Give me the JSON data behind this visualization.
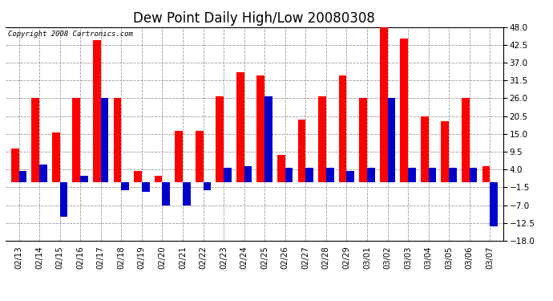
{
  "title": "Dew Point Daily High/Low 20080308",
  "copyright": "Copyright 2008 Cartronics.com",
  "dates": [
    "02/13",
    "02/14",
    "02/15",
    "02/16",
    "02/17",
    "02/18",
    "02/19",
    "02/20",
    "02/21",
    "02/22",
    "02/23",
    "02/24",
    "02/25",
    "02/26",
    "02/27",
    "02/28",
    "02/29",
    "03/01",
    "03/02",
    "03/03",
    "03/04",
    "03/05",
    "03/06",
    "03/07"
  ],
  "highs": [
    10.5,
    26.0,
    15.5,
    26.0,
    44.0,
    26.0,
    3.5,
    2.0,
    16.0,
    16.0,
    26.5,
    34.0,
    33.0,
    8.5,
    19.5,
    26.5,
    33.0,
    26.0,
    48.0,
    44.5,
    20.5,
    19.0,
    26.0,
    5.0
  ],
  "lows": [
    3.5,
    5.5,
    -10.5,
    2.0,
    26.0,
    -2.5,
    -3.0,
    -7.0,
    -7.0,
    -2.5,
    4.5,
    5.0,
    26.5,
    4.5,
    4.5,
    4.5,
    3.5,
    4.5,
    26.0,
    4.5,
    4.5,
    4.5,
    4.5,
    -13.5
  ],
  "high_color": "#ff0000",
  "low_color": "#0000cc",
  "bg_color": "#ffffff",
  "grid_color": "#999999",
  "ylim": [
    -18.0,
    48.0
  ],
  "yticks": [
    -18.0,
    -12.5,
    -7.0,
    -1.5,
    4.0,
    9.5,
    15.0,
    20.5,
    26.0,
    31.5,
    37.0,
    42.5,
    48.0
  ],
  "title_fontsize": 12,
  "bar_width": 0.38
}
